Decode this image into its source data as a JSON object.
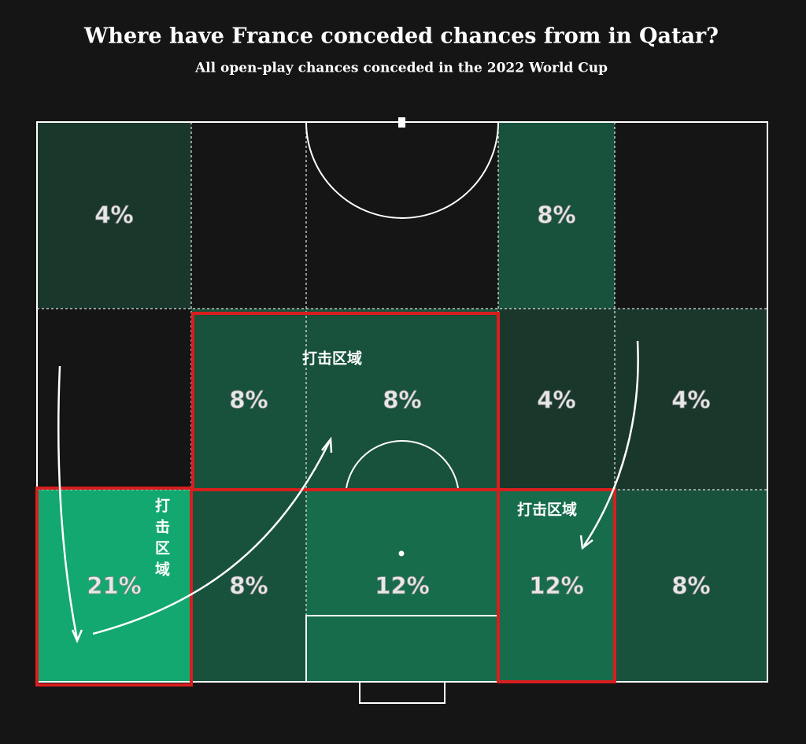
{
  "chart_data": {
    "type": "heatmap",
    "title": "Where have France conceded chances from in Qatar?",
    "subtitle": "All open-play chances conceded in the 2022 World Cup",
    "values": [
      [
        4,
        null,
        null,
        8,
        null
      ],
      [
        null,
        8,
        8,
        4,
        4
      ],
      [
        21,
        8,
        12,
        12,
        8
      ]
    ],
    "value_labels": [
      [
        "4%",
        null,
        null,
        "8%",
        null
      ],
      [
        null,
        "8%",
        "8%",
        "4%",
        "4%"
      ],
      [
        "21%",
        "8%",
        "12%",
        "12%",
        "8%"
      ]
    ],
    "color_range": [
      "#1c1c1c",
      "#12a86f"
    ],
    "clim": [
      0,
      21
    ],
    "annotations": [
      "打击区域",
      "打击区域",
      "打击区域"
    ]
  }
}
